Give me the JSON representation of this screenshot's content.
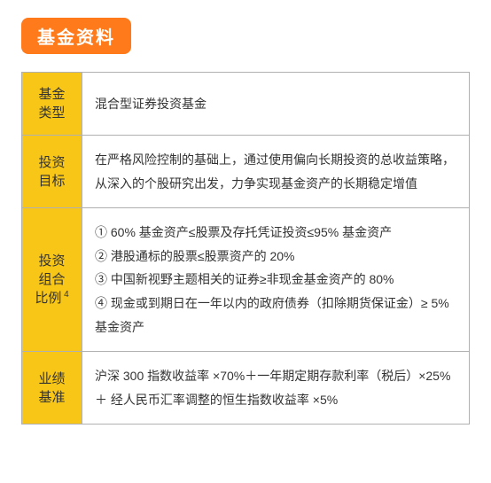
{
  "header": {
    "title": "基金资料"
  },
  "table": {
    "label_bg": "#f8c617",
    "border_color": "#b0b0b0",
    "rows": [
      {
        "label": "基金\n类型",
        "content": "混合型证券投资基金"
      },
      {
        "label": "投资\n目标",
        "content": "在严格风险控制的基础上，通过使用偏向长期投资的总收益策略，从深入的个股研究出发，力争实现基金资产的长期稳定增值"
      },
      {
        "label": "投资\n组合\n比例",
        "label_sup": "4",
        "content_items": [
          "① 60% 基金资产≤股票及存托凭证投资≤95% 基金资产",
          "② 港股通标的股票≤股票资产的 20%",
          "③ 中国新视野主题相关的证券≥非现金基金资产的 80%",
          "④ 现金或到期日在一年以内的政府债券（扣除期货保证金）≥ 5% 基金资产"
        ]
      },
      {
        "label": "业绩\n基准",
        "content": "沪深 300 指数收益率 ×70%＋一年期定期存款利率（税后）×25%＋ 经人民币汇率调整的恒生指数收益率 ×5%"
      }
    ]
  }
}
